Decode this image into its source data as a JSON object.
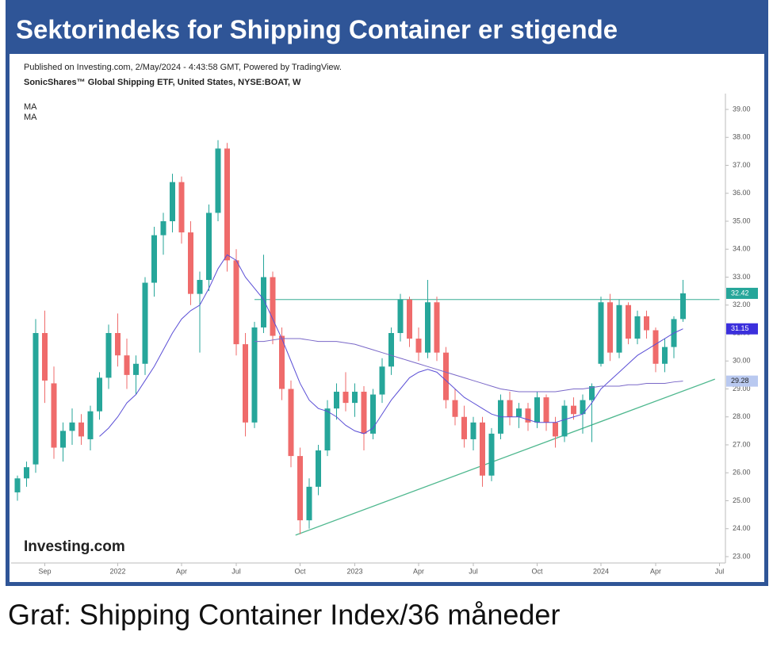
{
  "chart_data": {
    "type": "candlestick",
    "title": "Sektorindeks for Shipping Container er stigende",
    "subtitle": "Published on Investing.com, 2/May/2024 - 4:43:58 GMT, Powered by TradingView.",
    "instrument": "SonicShares™ Global Shipping ETF, United States, NYSE:BOAT, W",
    "logo": "Investing.com",
    "caption": "Graf: Shipping Container Index/36 måneder",
    "up_color": "#26a69a",
    "down_color": "#ef6b6b",
    "categories": [
      null,
      null,
      null,
      "Sep",
      null,
      null,
      null,
      null,
      null,
      null,
      null,
      "2022",
      null,
      null,
      null,
      null,
      null,
      null,
      "Apr",
      null,
      null,
      null,
      null,
      null,
      "Jul",
      null,
      null,
      null,
      null,
      null,
      null,
      "Oct",
      null,
      null,
      null,
      null,
      null,
      "2023",
      null,
      null,
      null,
      null,
      null,
      null,
      "Apr",
      null,
      null,
      null,
      null,
      null,
      "Jul",
      null,
      null,
      null,
      null,
      null,
      null,
      "Oct",
      null,
      null,
      null,
      null,
      null,
      null,
      "2024",
      null,
      null,
      null,
      null,
      null,
      "Apr",
      null,
      null,
      null,
      null,
      null,
      null,
      "Jul"
    ],
    "open": [
      25.3,
      25.8,
      26.3,
      31.0,
      29.2,
      26.9,
      27.5,
      27.8,
      27.2,
      28.2,
      29.4,
      31.0,
      30.2,
      29.5,
      29.9,
      32.8,
      34.5,
      35.0,
      36.4,
      34.6,
      32.4,
      32.9,
      35.3,
      37.6,
      33.6,
      30.6,
      27.8,
      31.2,
      33.0,
      30.9,
      29.0,
      26.6,
      24.3,
      25.5,
      26.8,
      28.3,
      28.9,
      28.5,
      28.9,
      27.4,
      28.8,
      29.8,
      31.0,
      32.2,
      30.8,
      30.3,
      32.1,
      30.3,
      28.6,
      28.0,
      27.2,
      27.8,
      25.9,
      27.4,
      28.6,
      28.0,
      28.3,
      27.8,
      28.7,
      27.8,
      27.3,
      28.4,
      28.1,
      28.6,
      29.9,
      32.1,
      30.3,
      32.0,
      30.8,
      31.6,
      31.1,
      29.9,
      30.5,
      31.5,
      null,
      null,
      null,
      null
    ],
    "high": [
      25.9,
      26.4,
      31.5,
      31.8,
      29.8,
      27.8,
      28.3,
      28.1,
      28.4,
      29.6,
      31.3,
      31.7,
      30.8,
      30.2,
      33.0,
      34.8,
      35.3,
      36.7,
      36.6,
      35.0,
      33.2,
      35.6,
      37.9,
      37.8,
      34.0,
      31.0,
      31.4,
      33.8,
      33.2,
      31.2,
      29.3,
      26.9,
      25.8,
      27.0,
      28.6,
      29.2,
      29.6,
      29.2,
      29.1,
      29.0,
      30.1,
      31.2,
      32.4,
      32.3,
      31.2,
      32.9,
      32.3,
      30.5,
      29.0,
      28.4,
      28.0,
      28.0,
      27.6,
      28.8,
      28.9,
      28.5,
      28.5,
      28.9,
      28.8,
      28.0,
      28.6,
      28.7,
      28.8,
      29.2,
      32.3,
      32.4,
      32.2,
      32.1,
      31.8,
      31.8,
      31.2,
      30.8,
      31.6,
      32.9,
      null,
      null,
      null,
      null
    ],
    "low": [
      25.0,
      25.5,
      26.0,
      28.5,
      26.5,
      26.4,
      27.0,
      27.0,
      26.8,
      27.9,
      29.0,
      29.8,
      29.0,
      28.8,
      29.5,
      32.3,
      33.8,
      34.6,
      34.2,
      32.0,
      30.3,
      32.5,
      35.0,
      33.2,
      30.2,
      27.3,
      27.6,
      31.0,
      30.6,
      28.6,
      26.2,
      23.8,
      24.0,
      25.2,
      26.6,
      27.9,
      28.2,
      28.0,
      26.8,
      27.2,
      28.5,
      29.5,
      30.7,
      30.5,
      30.0,
      30.1,
      30.0,
      28.3,
      27.7,
      26.9,
      26.8,
      25.5,
      25.7,
      27.2,
      27.7,
      27.6,
      27.5,
      27.6,
      27.5,
      26.9,
      27.1,
      27.9,
      27.4,
      27.1,
      29.8,
      30.0,
      30.1,
      30.6,
      30.6,
      30.8,
      29.6,
      29.6,
      30.1,
      31.4,
      null,
      null,
      null,
      null
    ],
    "close": [
      25.8,
      26.2,
      31.0,
      29.3,
      26.9,
      27.5,
      27.8,
      27.3,
      28.2,
      29.4,
      31.0,
      30.2,
      29.5,
      29.9,
      32.8,
      34.5,
      35.0,
      36.4,
      34.6,
      32.4,
      32.9,
      35.3,
      37.6,
      33.6,
      30.6,
      27.8,
      31.2,
      33.0,
      30.9,
      29.0,
      26.6,
      24.3,
      25.5,
      26.8,
      28.3,
      28.9,
      28.5,
      28.9,
      27.4,
      28.8,
      29.8,
      31.0,
      32.2,
      30.8,
      30.3,
      32.1,
      30.3,
      28.6,
      28.0,
      27.2,
      27.8,
      25.9,
      27.4,
      28.6,
      28.0,
      28.3,
      27.8,
      28.7,
      27.8,
      27.3,
      28.4,
      28.1,
      28.6,
      29.1,
      32.1,
      30.3,
      32.0,
      30.8,
      31.6,
      31.1,
      29.9,
      30.5,
      31.5,
      32.42,
      null,
      null,
      null,
      null
    ],
    "series": [
      {
        "name": "MA",
        "color": "#5b4fd6",
        "values": [
          null,
          null,
          null,
          null,
          null,
          null,
          null,
          null,
          null,
          27.3,
          27.6,
          28.0,
          28.5,
          28.8,
          29.3,
          29.8,
          30.4,
          31.0,
          31.5,
          31.8,
          32.0,
          32.6,
          33.3,
          33.8,
          33.6,
          33.0,
          32.6,
          32.2,
          31.5,
          30.8,
          30.0,
          29.2,
          28.6,
          28.3,
          28.2,
          28.0,
          27.7,
          27.5,
          27.4,
          27.6,
          28.1,
          28.6,
          29.0,
          29.4,
          29.6,
          29.7,
          29.6,
          29.3,
          29.0,
          28.7,
          28.5,
          28.3,
          28.1,
          28.0,
          28.0,
          28.0,
          27.9,
          27.8,
          27.8,
          27.8,
          27.9,
          28.0,
          28.1,
          28.5,
          29.0,
          29.3,
          29.6,
          29.9,
          30.2,
          30.4,
          30.6,
          30.8,
          31.0,
          31.15,
          null,
          null,
          null,
          null
        ]
      },
      {
        "name": "MA",
        "color": "#7a68c8",
        "values": [
          null,
          null,
          null,
          null,
          null,
          null,
          null,
          null,
          null,
          null,
          null,
          null,
          null,
          null,
          null,
          null,
          null,
          null,
          null,
          null,
          null,
          null,
          null,
          null,
          null,
          null,
          30.7,
          30.7,
          30.75,
          30.8,
          30.8,
          30.8,
          30.75,
          30.7,
          30.7,
          30.7,
          30.65,
          30.6,
          30.5,
          30.4,
          30.3,
          30.2,
          30.1,
          30.0,
          29.9,
          29.8,
          29.7,
          29.6,
          29.5,
          29.4,
          29.3,
          29.2,
          29.1,
          29.0,
          28.95,
          28.9,
          28.9,
          28.9,
          28.9,
          28.9,
          28.95,
          29.0,
          29.0,
          29.05,
          29.1,
          29.1,
          29.1,
          29.15,
          29.15,
          29.2,
          29.2,
          29.2,
          29.25,
          29.28,
          null,
          null,
          null,
          null
        ]
      }
    ],
    "lines": [
      {
        "color": "#6cc3b0",
        "x": [
          26,
          77
        ],
        "values": [
          32.2,
          32.2
        ]
      },
      {
        "color": "#4fb88f",
        "x": [
          30.5,
          76.5
        ],
        "values": [
          23.77,
          29.35
        ]
      }
    ],
    "price_tags": [
      {
        "value": 32.42,
        "color": "#26a69a"
      },
      {
        "value": 31.15,
        "color": "#3b2fdc"
      },
      {
        "value": 29.28,
        "color": "#b9c9f0"
      }
    ],
    "ylim": [
      23,
      39
    ],
    "yticks": [
      {
        "value": 39,
        "label": "39.00"
      },
      {
        "value": 38,
        "label": "38.00"
      },
      {
        "value": 37,
        "label": "37.00"
      },
      {
        "value": 36,
        "label": "36.00"
      },
      {
        "value": 35,
        "label": "35.00"
      },
      {
        "value": 34,
        "label": "34.00"
      },
      {
        "value": 33,
        "label": "33.00"
      },
      {
        "value": 32,
        "label": "32.00"
      },
      {
        "value": 31,
        "label": "31.00"
      },
      {
        "value": 30,
        "label": "30.00"
      },
      {
        "value": 29,
        "label": "29.00"
      },
      {
        "value": 28,
        "label": "28.00"
      },
      {
        "value": 27,
        "label": "27.00"
      },
      {
        "value": 26,
        "label": "26.00"
      },
      {
        "value": 25,
        "label": "25.00"
      },
      {
        "value": 24,
        "label": "24.00"
      },
      {
        "value": 23,
        "label": "23.00"
      }
    ]
  }
}
